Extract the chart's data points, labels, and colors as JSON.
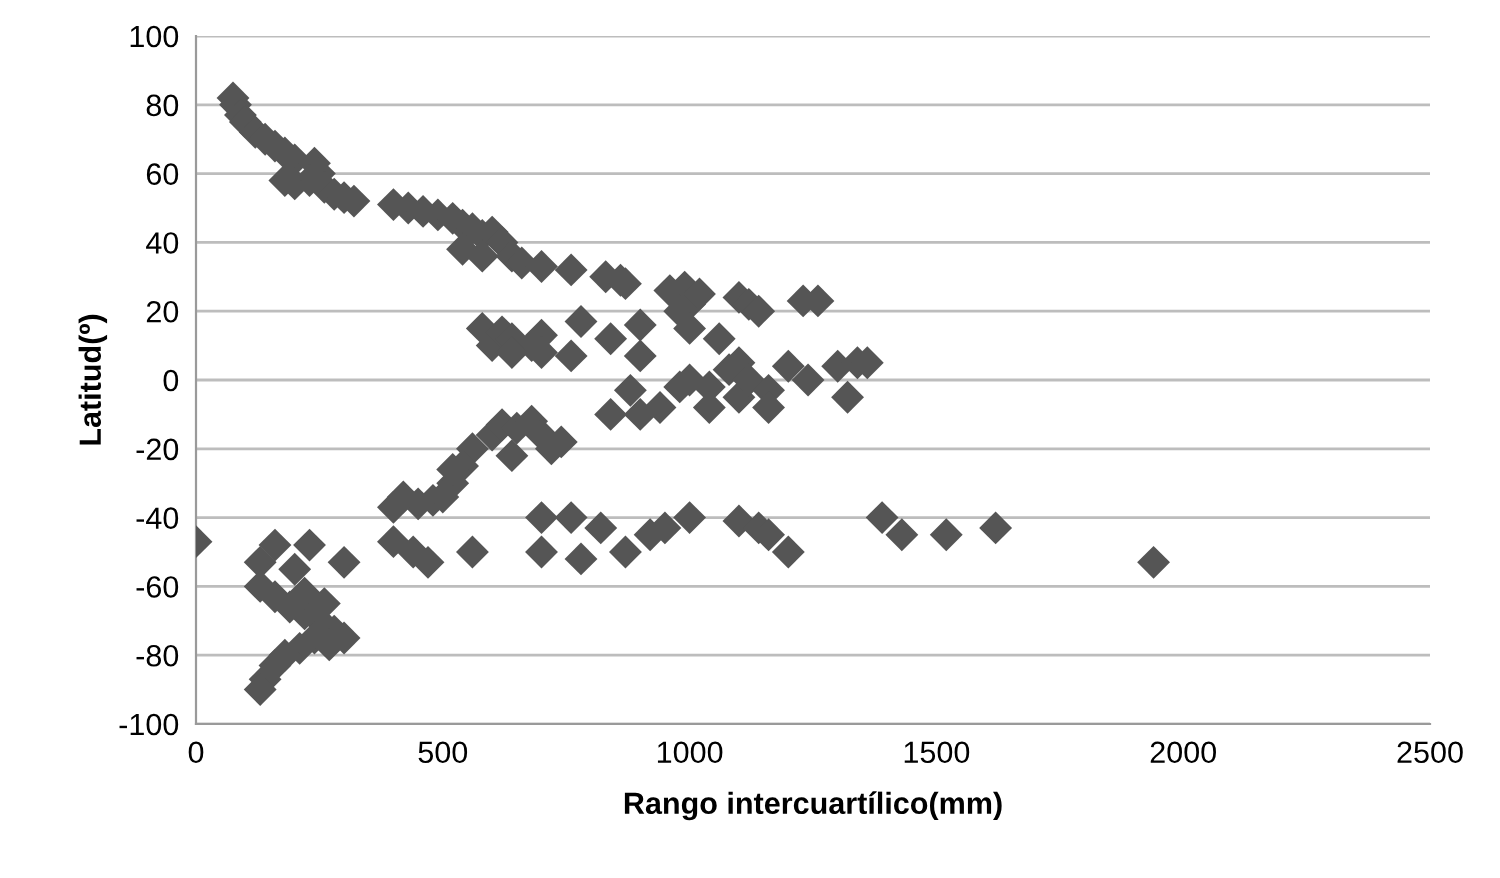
{
  "chart_data": {
    "type": "scatter",
    "xlabel": "Rango intercuartílico(mm)",
    "ylabel": "Latitud(º)",
    "xlim": [
      0,
      2500
    ],
    "xticks": [
      0,
      500,
      1000,
      1500,
      2000,
      2500
    ],
    "ylim": [
      -100,
      100
    ],
    "yticks": [
      -100,
      -80,
      -60,
      -40,
      -20,
      0,
      20,
      40,
      60,
      80,
      100
    ],
    "grid": "y",
    "marker": "diamond",
    "series": [
      {
        "color": "#555555",
        "x": [
          75,
          80,
          90,
          100,
          120,
          140,
          160,
          180,
          200,
          240,
          250,
          230,
          200,
          180,
          260,
          280,
          300,
          320,
          400,
          430,
          460,
          490,
          520,
          540,
          560,
          580,
          600,
          620,
          580,
          540,
          640,
          660,
          700,
          760,
          830,
          860,
          870,
          990,
          960,
          1000,
          1020,
          980,
          1100,
          1120,
          1140,
          1230,
          1260,
          580,
          600,
          620,
          640,
          680,
          700,
          640,
          700,
          780,
          760,
          840,
          900,
          900,
          1000,
          1060,
          1000,
          1040,
          1080,
          1100,
          1100,
          1120,
          1160,
          1200,
          1240,
          1160,
          1300,
          1340,
          1360,
          1320,
          1040,
          980,
          880,
          940,
          900,
          840,
          560,
          600,
          620,
          650,
          680,
          700,
          720,
          740,
          640,
          540,
          520,
          500,
          480,
          450,
          420,
          400,
          520,
          0,
          130,
          160,
          200,
          230,
          300,
          400,
          440,
          470,
          560,
          700,
          700,
          760,
          780,
          820,
          870,
          920,
          950,
          1000,
          1100,
          1140,
          1160,
          1200,
          1390,
          1430,
          1520,
          1620,
          1940,
          130,
          160,
          190,
          220,
          250,
          280,
          300,
          270,
          240,
          210,
          180,
          160,
          140,
          130,
          220,
          260
        ],
        "values": [
          82,
          80,
          77,
          75,
          72,
          70,
          68,
          66,
          64,
          63,
          60,
          58,
          57,
          58,
          56,
          54,
          53,
          52,
          51,
          50,
          49,
          48,
          47,
          45,
          44,
          42,
          43,
          40,
          36,
          38,
          36,
          34,
          33,
          32,
          30,
          29,
          28,
          27,
          26,
          22,
          25,
          20,
          24,
          22,
          20,
          23,
          23,
          15,
          10,
          14,
          12,
          10,
          13,
          8,
          8,
          17,
          7,
          12,
          16,
          7,
          15,
          12,
          0,
          -2,
          3,
          -5,
          5,
          0,
          -3,
          4,
          0,
          -8,
          4,
          5,
          5,
          -5,
          -8,
          -2,
          -3,
          -8,
          -10,
          -10,
          -20,
          -16,
          -13,
          -14,
          -12,
          -16,
          -20,
          -18,
          -22,
          -25,
          -30,
          -34,
          -35,
          -36,
          -34,
          -37,
          -26,
          -47,
          -53,
          -48,
          -55,
          -48,
          -53,
          -47,
          -50,
          -53,
          -50,
          -40,
          -50,
          -40,
          -52,
          -43,
          -50,
          -45,
          -43,
          -40,
          -41,
          -43,
          -45,
          -50,
          -40,
          -45,
          -45,
          -43,
          -53,
          -60,
          -63,
          -66,
          -68,
          -70,
          -73,
          -75,
          -77,
          -75,
          -78,
          -80,
          -83,
          -87,
          -90,
          -62,
          -65
        ]
      }
    ]
  }
}
